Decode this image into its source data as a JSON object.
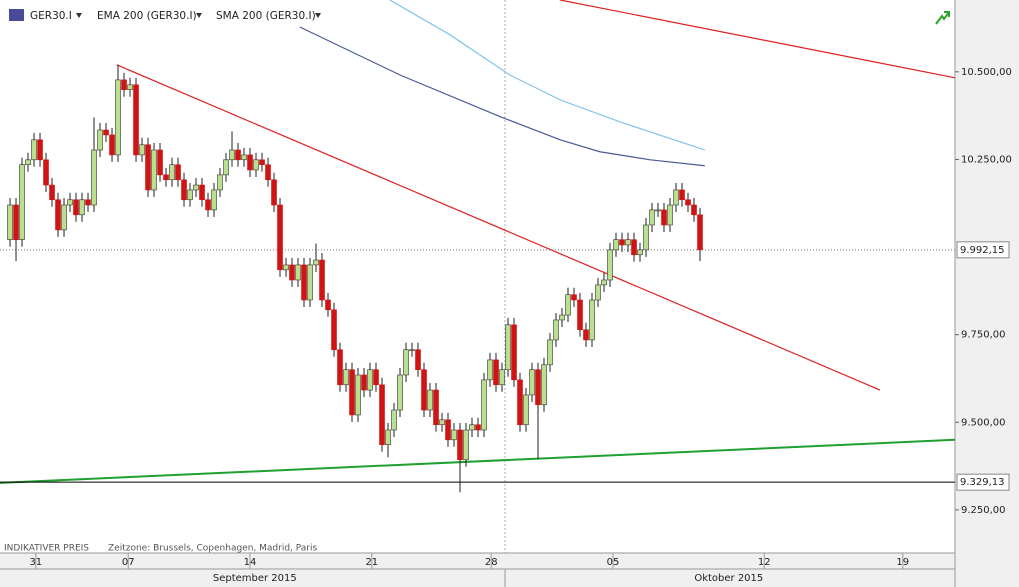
{
  "chart_data": {
    "type": "candlestick",
    "symbol": "GER30.I",
    "indicators": [
      {
        "name": "EMA 200 (GER30.I)",
        "color": "#4a5a9a"
      },
      {
        "name": "SMA 200 (GER30.I)",
        "color": "#7ec4ef"
      }
    ],
    "footer": [
      "INDIKATIVER PREIS",
      "Zeitzone: Brussels, Copenhagen, Madrid, Paris"
    ],
    "up_color": "#b9e08e",
    "down_color": "#d01414",
    "ohlc": [
      [
        10021,
        10140,
        10001,
        10120
      ],
      [
        10120,
        10140,
        9960,
        10021
      ],
      [
        10021,
        10255,
        10001,
        10235
      ],
      [
        10235,
        10269,
        10215,
        10249
      ],
      [
        10249,
        10326,
        10229,
        10306
      ],
      [
        10306,
        10326,
        10229,
        10249
      ],
      [
        10249,
        10269,
        10157,
        10177
      ],
      [
        10177,
        10197,
        10115,
        10135
      ],
      [
        10135,
        10155,
        10029,
        10049
      ],
      [
        10049,
        10140,
        10029,
        10120
      ],
      [
        10120,
        10155,
        10100,
        10135
      ],
      [
        10135,
        10155,
        10072,
        10092
      ],
      [
        10092,
        10155,
        10072,
        10135
      ],
      [
        10135,
        10155,
        10100,
        10120
      ],
      [
        10120,
        10370,
        10100,
        10277
      ],
      [
        10277,
        10354,
        10257,
        10334
      ],
      [
        10334,
        10354,
        10300,
        10320
      ],
      [
        10320,
        10340,
        10243,
        10263
      ],
      [
        10263,
        10520,
        10243,
        10477
      ],
      [
        10477,
        10497,
        10429,
        10449
      ],
      [
        10449,
        10483,
        10429,
        10463
      ],
      [
        10463,
        10483,
        10243,
        10263
      ],
      [
        10263,
        10312,
        10243,
        10292
      ],
      [
        10292,
        10312,
        10143,
        10163
      ],
      [
        10163,
        10297,
        10143,
        10277
      ],
      [
        10277,
        10297,
        10186,
        10206
      ],
      [
        10206,
        10226,
        10172,
        10192
      ],
      [
        10192,
        10255,
        10172,
        10235
      ],
      [
        10235,
        10255,
        10172,
        10192
      ],
      [
        10192,
        10212,
        10115,
        10135
      ],
      [
        10135,
        10183,
        10115,
        10163
      ],
      [
        10163,
        10197,
        10143,
        10177
      ],
      [
        10177,
        10197,
        10115,
        10135
      ],
      [
        10135,
        10155,
        10086,
        10106
      ],
      [
        10106,
        10183,
        10086,
        10163
      ],
      [
        10163,
        10226,
        10143,
        10206
      ],
      [
        10206,
        10269,
        10186,
        10249
      ],
      [
        10249,
        10330,
        10229,
        10277
      ],
      [
        10277,
        10297,
        10229,
        10249
      ],
      [
        10249,
        10283,
        10229,
        10263
      ],
      [
        10263,
        10283,
        10200,
        10220
      ],
      [
        10220,
        10269,
        10200,
        10249
      ],
      [
        10249,
        10269,
        10215,
        10235
      ],
      [
        10235,
        10255,
        10172,
        10192
      ],
      [
        10192,
        10212,
        10100,
        10120
      ],
      [
        10120,
        10140,
        9915,
        9935
      ],
      [
        9935,
        9969,
        9915,
        9949
      ],
      [
        9949,
        9969,
        9886,
        9906
      ],
      [
        9906,
        9969,
        9886,
        9949
      ],
      [
        9949,
        9969,
        9829,
        9849
      ],
      [
        9849,
        9969,
        9829,
        9949
      ],
      [
        9949,
        10010,
        9929,
        9963
      ],
      [
        9963,
        9983,
        9829,
        9849
      ],
      [
        9849,
        9869,
        9801,
        9821
      ],
      [
        9821,
        9841,
        9687,
        9707
      ],
      [
        9707,
        9727,
        9587,
        9607
      ],
      [
        9607,
        9670,
        9587,
        9650
      ],
      [
        9650,
        9670,
        9501,
        9521
      ],
      [
        9521,
        9655,
        9501,
        9635
      ],
      [
        9635,
        9655,
        9572,
        9592
      ],
      [
        9592,
        9670,
        9572,
        9650
      ],
      [
        9650,
        9670,
        9587,
        9607
      ],
      [
        9607,
        9627,
        9416,
        9436
      ],
      [
        9436,
        9498,
        9400,
        9478
      ],
      [
        9478,
        9555,
        9458,
        9535
      ],
      [
        9535,
        9655,
        9515,
        9635
      ],
      [
        9635,
        9727,
        9615,
        9707
      ],
      [
        9707,
        9727,
        9687,
        9707
      ],
      [
        9707,
        9727,
        9630,
        9650
      ],
      [
        9650,
        9670,
        9515,
        9535
      ],
      [
        9535,
        9612,
        9515,
        9592
      ],
      [
        9592,
        9612,
        9473,
        9493
      ],
      [
        9493,
        9527,
        9473,
        9507
      ],
      [
        9507,
        9527,
        9430,
        9450
      ],
      [
        9450,
        9498,
        9430,
        9478
      ],
      [
        9478,
        9498,
        9300,
        9393
      ],
      [
        9393,
        9498,
        9373,
        9478
      ],
      [
        9478,
        9513,
        9458,
        9493
      ],
      [
        9493,
        9513,
        9458,
        9478
      ],
      [
        9478,
        9641,
        9458,
        9621
      ],
      [
        9621,
        9698,
        9601,
        9678
      ],
      [
        9678,
        9698,
        9587,
        9607
      ],
      [
        9607,
        9670,
        9587,
        9650
      ],
      [
        9650,
        9798,
        9630,
        9778
      ],
      [
        9778,
        9798,
        9601,
        9621
      ],
      [
        9621,
        9641,
        9473,
        9493
      ],
      [
        9493,
        9598,
        9473,
        9578
      ],
      [
        9578,
        9670,
        9558,
        9650
      ],
      [
        9650,
        9670,
        9395,
        9550
      ],
      [
        9550,
        9684,
        9530,
        9664
      ],
      [
        9664,
        9755,
        9644,
        9735
      ],
      [
        9735,
        9812,
        9715,
        9792
      ],
      [
        9792,
        9826,
        9772,
        9806
      ],
      [
        9806,
        9884,
        9786,
        9864
      ],
      [
        9864,
        9884,
        9829,
        9849
      ],
      [
        9849,
        9869,
        9744,
        9764
      ],
      [
        9764,
        9784,
        9715,
        9735
      ],
      [
        9735,
        9869,
        9715,
        9849
      ],
      [
        9849,
        9912,
        9829,
        9892
      ],
      [
        9892,
        9926,
        9872,
        9906
      ],
      [
        9906,
        10012,
        9886,
        9992
      ],
      [
        9992,
        10041,
        9972,
        10021
      ],
      [
        10021,
        10041,
        9986,
        10006
      ],
      [
        10006,
        10041,
        9986,
        10021
      ],
      [
        10021,
        10041,
        9958,
        9978
      ],
      [
        9978,
        10012,
        9958,
        9992
      ],
      [
        9992,
        10083,
        9972,
        10063
      ],
      [
        10063,
        10126,
        10043,
        10106
      ],
      [
        10106,
        10126,
        10086,
        10106
      ],
      [
        10106,
        10126,
        10043,
        10063
      ],
      [
        10063,
        10140,
        10043,
        10120
      ],
      [
        10120,
        10183,
        10100,
        10163
      ],
      [
        10163,
        10183,
        10115,
        10135
      ],
      [
        10135,
        10155,
        10100,
        10120
      ],
      [
        10120,
        10140,
        10072,
        10092
      ],
      [
        10092,
        10112,
        9960,
        9992.15
      ]
    ],
    "indicator_lines": [
      [
        [
          48.3,
          10628
        ],
        [
          65,
          10491
        ],
        [
          81.7,
          10372
        ],
        [
          91.7,
          10306
        ],
        [
          98.3,
          10272
        ],
        [
          106.7,
          10249
        ],
        [
          115.8,
          10232
        ]
      ],
      [
        [
          63.3,
          10705
        ],
        [
          73.3,
          10606
        ],
        [
          83.3,
          10491
        ],
        [
          91.7,
          10420
        ],
        [
          101.7,
          10357
        ],
        [
          115.8,
          10277
        ]
      ]
    ],
    "trend_lines": [
      {
        "color": "#e02020",
        "points": [
          [
            17.8,
            10520
          ],
          [
            145,
            9592
          ]
        ]
      },
      {
        "color": "#e02020",
        "points": [
          [
            91.7,
            10705
          ],
          [
            157.5,
            10483
          ]
        ]
      },
      {
        "color": "#1fa030",
        "points": [
          [
            -1.67,
            9327
          ],
          [
            157.5,
            9450
          ]
        ]
      }
    ],
    "price_levels": [
      {
        "value": 9992.15,
        "label": "9.992,15",
        "style": "dotted",
        "color": "#777777"
      },
      {
        "value": 9329.13,
        "label": "9.329,13",
        "style": "solid",
        "color": "#000000"
      }
    ],
    "xlim": [
      -1.67,
      157.5
    ],
    "ylim": [
      9127,
      10705
    ],
    "yticks": [
      {
        "value": 9250,
        "label": "9.250,00"
      },
      {
        "value": 9500,
        "label": "9.500,00"
      },
      {
        "value": 9750,
        "label": "9.750,00"
      },
      {
        "value": 10250,
        "label": "10.250,00"
      },
      {
        "value": 10500,
        "label": "10.500,00"
      }
    ],
    "xticks": [
      {
        "value": 4.3,
        "label": "31"
      },
      {
        "value": 19.7,
        "label": "07"
      },
      {
        "value": 40,
        "label": "14"
      },
      {
        "value": 60.3,
        "label": "21"
      },
      {
        "value": 80.2,
        "label": "28"
      },
      {
        "value": 100.5,
        "label": "05"
      },
      {
        "value": 125.7,
        "label": "12"
      },
      {
        "value": 148.8,
        "label": "19"
      }
    ],
    "month_ticks": [
      {
        "value": 40.8,
        "label": "September 2015"
      },
      {
        "value": 119.8,
        "label": "Oktober 2015"
      }
    ],
    "month_bounds": [
      82.5
    ]
  }
}
